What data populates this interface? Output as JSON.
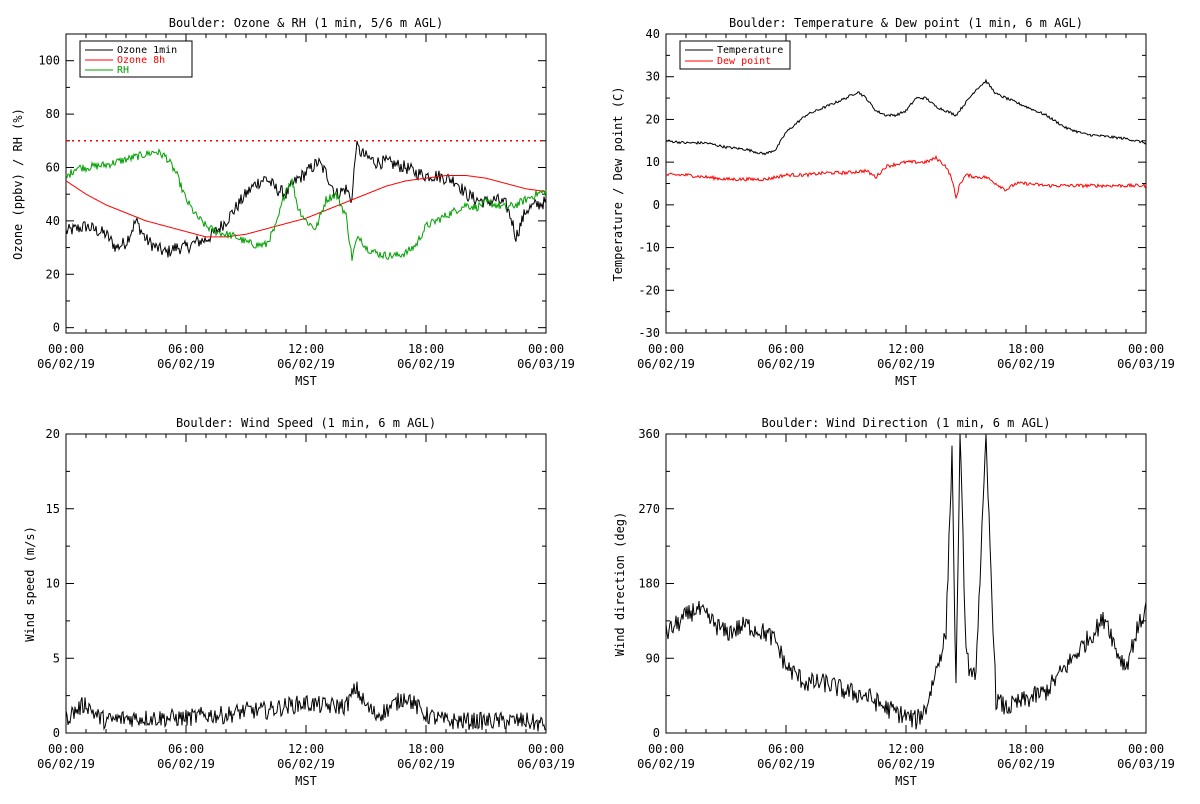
{
  "x_axis": {
    "ticks": [
      "00:00",
      "06:00",
      "12:00",
      "18:00",
      "00:00"
    ],
    "dates": [
      "06/02/19",
      "06/02/19",
      "06/02/19",
      "06/02/19",
      "06/03/19"
    ],
    "label": "MST",
    "range_hours": [
      0,
      24
    ]
  },
  "chart_data": [
    {
      "type": "line",
      "title": "Boulder: Ozone & RH (1 min, 5/6 m AGL)",
      "ylabel": "Ozone (ppbv) / RH (%)",
      "xlabel": "MST",
      "ylim": [
        -2,
        110
      ],
      "yticks": [
        0,
        20,
        40,
        60,
        80,
        100
      ],
      "legend_position": "top-left",
      "reference_line": {
        "y": 70,
        "style": "dotted",
        "color": "#ff0000"
      },
      "series": [
        {
          "name": "Ozone 1min",
          "color": "#000000",
          "noise": 2.5,
          "x": [
            0,
            1,
            2,
            2.5,
            3,
            3.5,
            4,
            4.5,
            5,
            5.5,
            6,
            6.5,
            7,
            7.5,
            8,
            8.5,
            9,
            9.5,
            10,
            10.5,
            11,
            11.5,
            12,
            12.3,
            12.6,
            13,
            13.5,
            14,
            14.3,
            14.5,
            14.7,
            15,
            15.5,
            16,
            16.5,
            17,
            17.5,
            18,
            18.5,
            19,
            19.5,
            20,
            20.5,
            21,
            21.5,
            22,
            22.3,
            22.5,
            22.8,
            23,
            23.5,
            24
          ],
          "y": [
            36,
            38,
            35,
            30,
            32,
            40,
            33,
            30,
            28,
            30,
            30,
            32,
            33,
            36,
            40,
            45,
            50,
            54,
            56,
            52,
            50,
            55,
            58,
            60,
            62,
            58,
            50,
            52,
            48,
            68,
            66,
            64,
            62,
            62,
            61,
            60,
            58,
            57,
            57,
            56,
            55,
            50,
            48,
            47,
            48,
            46,
            40,
            34,
            40,
            44,
            46,
            47
          ]
        },
        {
          "name": "Ozone 8h",
          "color": "#ff0000",
          "noise": 0,
          "x": [
            0,
            1,
            2,
            3,
            4,
            5,
            6,
            7,
            8,
            9,
            10,
            11,
            12,
            13,
            14,
            15,
            16,
            17,
            18,
            19,
            20,
            21,
            22,
            23,
            24
          ],
          "y": [
            55,
            50,
            46,
            43,
            40,
            38,
            36,
            34,
            34,
            35,
            37,
            39,
            41,
            44,
            47,
            50,
            53,
            55,
            56,
            57,
            57,
            56,
            54,
            52,
            51
          ]
        },
        {
          "name": "RH",
          "color": "#00a000",
          "noise": 1.5,
          "x": [
            0,
            0.5,
            1,
            2,
            3,
            4,
            4.5,
            5,
            5.5,
            6,
            6.5,
            7,
            7.5,
            8,
            8.5,
            9,
            9.5,
            10,
            10.5,
            11,
            11.3,
            11.6,
            12,
            12.5,
            13,
            13.5,
            14,
            14.3,
            14.5,
            14.7,
            15,
            15.5,
            16,
            16.5,
            17,
            17.5,
            18,
            18.5,
            19,
            19.5,
            20,
            20.5,
            21,
            21.5,
            22,
            22.5,
            23,
            23.5,
            24
          ],
          "y": [
            56,
            60,
            60,
            61,
            63,
            65,
            66,
            64,
            58,
            48,
            42,
            38,
            36,
            35,
            34,
            32,
            31,
            31,
            38,
            52,
            55,
            45,
            40,
            37,
            48,
            50,
            42,
            26,
            32,
            34,
            30,
            28,
            27,
            27,
            28,
            31,
            38,
            40,
            42,
            44,
            46,
            45,
            47,
            46,
            45,
            46,
            48,
            50,
            51
          ]
        }
      ]
    },
    {
      "type": "line",
      "title": "Boulder: Temperature & Dew point (1 min, 6 m AGL)",
      "ylabel": "Temperature / Dew point (C)",
      "xlabel": "MST",
      "ylim": [
        -30,
        40
      ],
      "yticks": [
        -30,
        -20,
        -10,
        0,
        10,
        20,
        30,
        40
      ],
      "legend_position": "top-left",
      "series": [
        {
          "name": "Temperature",
          "color": "#000000",
          "noise": 0.3,
          "x": [
            0,
            1,
            2,
            3,
            4,
            4.8,
            5,
            5.5,
            6,
            6.5,
            7,
            8,
            9,
            9.6,
            10,
            10.5,
            11,
            11.5,
            12,
            12.5,
            13,
            13.5,
            14,
            14.5,
            15,
            15.5,
            16,
            16.5,
            17,
            18,
            19,
            20,
            21,
            22,
            23,
            23.5,
            24
          ],
          "y": [
            15,
            14.5,
            14.5,
            13.5,
            13,
            12,
            12,
            13,
            17,
            19,
            21,
            23,
            25,
            26.5,
            25,
            22,
            21,
            21,
            22,
            25,
            25,
            23,
            22,
            21,
            24,
            27,
            29,
            26,
            25,
            23,
            21,
            18,
            16.5,
            16,
            15.5,
            15,
            14.5
          ]
        },
        {
          "name": "Dew point",
          "color": "#ff0000",
          "noise": 0.4,
          "x": [
            0,
            1,
            2,
            3,
            4,
            5,
            6,
            7,
            8,
            9,
            10,
            10.5,
            11,
            12,
            13,
            13.5,
            14,
            14.3,
            14.5,
            14.7,
            15,
            15.5,
            16,
            16.5,
            17,
            17.5,
            18,
            19,
            20,
            21,
            22,
            23,
            24
          ],
          "y": [
            7,
            7,
            6.5,
            6,
            6,
            6,
            7,
            7,
            7.5,
            7.5,
            8,
            6.5,
            9,
            10,
            10,
            11,
            9,
            6,
            1.5,
            5,
            7,
            6.5,
            6.5,
            5,
            3.5,
            5,
            5,
            4.5,
            4.5,
            4.5,
            4.5,
            4.5,
            4.5
          ]
        }
      ]
    },
    {
      "type": "line",
      "title": "Boulder: Wind Speed (1 min, 6 m AGL)",
      "ylabel": "Wind speed (m/s)",
      "xlabel": "MST",
      "ylim": [
        0,
        20
      ],
      "yticks": [
        0,
        5,
        10,
        15,
        20
      ],
      "series": [
        {
          "name": "",
          "color": "#000000",
          "noise": 0.6,
          "x": [
            0,
            0.5,
            1,
            1.5,
            2,
            3,
            4,
            5,
            6,
            7,
            8,
            9,
            10,
            11,
            12,
            13,
            14,
            14.5,
            15,
            15.5,
            16,
            16.5,
            17,
            17.5,
            18,
            19,
            20,
            21,
            22,
            23,
            24
          ],
          "y": [
            1,
            1.5,
            2,
            1.2,
            0.8,
            1,
            1,
            1,
            1,
            1.2,
            1.2,
            1.5,
            1.5,
            1.8,
            2,
            1.8,
            1.8,
            3,
            1.8,
            1.2,
            1.5,
            2,
            2.5,
            1.8,
            1.2,
            0.8,
            0.8,
            0.8,
            0.8,
            0.8,
            0.5
          ]
        }
      ]
    },
    {
      "type": "line",
      "title": "Boulder: Wind Direction (1 min, 6 m AGL)",
      "ylabel": "Wind direction (deg)",
      "xlabel": "MST",
      "ylim": [
        0,
        360
      ],
      "yticks": [
        0,
        90,
        180,
        270,
        360
      ],
      "series": [
        {
          "name": "",
          "color": "#000000",
          "noise": 12,
          "x": [
            0,
            1,
            1.5,
            2,
            3,
            4,
            5,
            5.5,
            6,
            7,
            8,
            9,
            10,
            11,
            11.5,
            12,
            12.5,
            13,
            14,
            14.3,
            14.5,
            14.7,
            15,
            15.3,
            15.5,
            16,
            16.5,
            17,
            18,
            19,
            20,
            21,
            22,
            22.5,
            23,
            23.5,
            24
          ],
          "y": [
            120,
            140,
            150,
            140,
            120,
            130,
            120,
            110,
            80,
            60,
            60,
            50,
            45,
            30,
            25,
            20,
            15,
            30,
            120,
            340,
            50,
            360,
            100,
            60,
            80,
            350,
            40,
            30,
            40,
            50,
            80,
            110,
            140,
            100,
            80,
            120,
            150
          ]
        }
      ]
    }
  ]
}
